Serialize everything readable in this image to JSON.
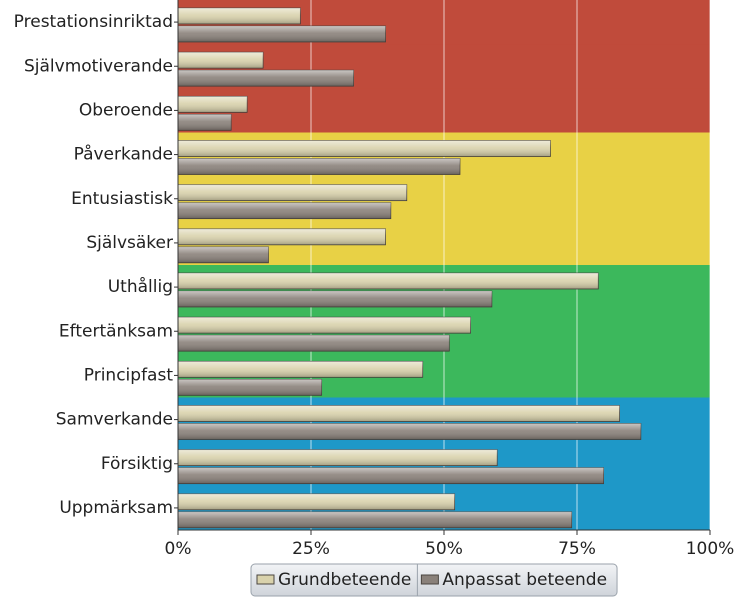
{
  "chart_data": {
    "type": "bar",
    "orientation": "horizontal",
    "categories": [
      "Prestationsinriktad",
      "Självmotiverande",
      "Oberoende",
      "Påverkande",
      "Entusiastisk",
      "Självsäker",
      "Uthållig",
      "Eftertänksam",
      "Principfast",
      "Samverkande",
      "Försiktig",
      "Uppmärksam"
    ],
    "background_colors": [
      "#c04b3b",
      "#c04b3b",
      "#c04b3b",
      "#e8d145",
      "#e8d145",
      "#e8d145",
      "#3cb85c",
      "#3cb85c",
      "#3cb85c",
      "#1e98c8",
      "#1e98c8",
      "#1e98c8"
    ],
    "series": [
      {
        "name": "Grundbeteende",
        "color": "#d9d2ac",
        "values": [
          23,
          16,
          13,
          70,
          43,
          39,
          79,
          55,
          46,
          83,
          60,
          52
        ]
      },
      {
        "name": "Anpassat beteende",
        "color": "#8a817a",
        "values": [
          39,
          33,
          10,
          53,
          40,
          17,
          59,
          51,
          27,
          87,
          80,
          74
        ]
      }
    ],
    "xlim": [
      0,
      100
    ],
    "xticks": [
      {
        "value": 0,
        "label": "0%"
      },
      {
        "value": 25,
        "label": "25%"
      },
      {
        "value": 50,
        "label": "50%"
      },
      {
        "value": 75,
        "label": "75%"
      },
      {
        "value": 100,
        "label": "100%"
      }
    ],
    "grid": true,
    "legend": "bottom"
  }
}
